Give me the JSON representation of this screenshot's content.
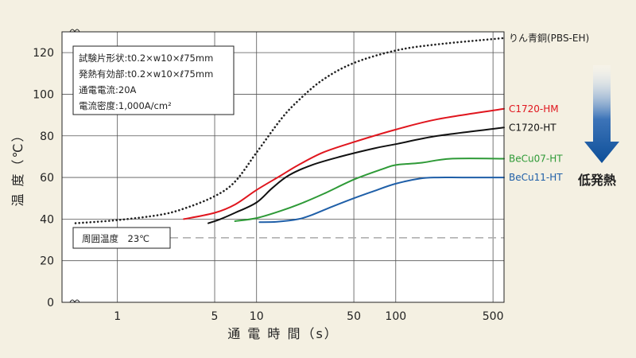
{
  "chart_data": {
    "type": "line",
    "xscale": "log",
    "xlabel": "通 電 時 間（s）",
    "ylabel": "温 度（℃）",
    "xlim": [
      0.4,
      600
    ],
    "ylim": [
      0,
      130
    ],
    "x_ticks": [
      1,
      5,
      10,
      50,
      100,
      500
    ],
    "x_tick_labels": [
      "1",
      "5",
      "10",
      "50",
      "100",
      "500"
    ],
    "y_ticks": [
      0,
      20,
      40,
      60,
      80,
      100,
      120
    ],
    "y_tick_labels": [
      "0",
      "20",
      "40",
      "60",
      "80",
      "100",
      "120"
    ],
    "ambient": {
      "label": "周囲温度　23℃",
      "value": 31
    },
    "conditions": [
      "試験片形状:t0.2×w10×ℓ75mm",
      "発熱有効部:t0.2×w10×ℓ75mm",
      "通電電流:20A",
      "電流密度:1,000A/cm²"
    ],
    "arrow_label": "低発熱",
    "series": [
      {
        "name": "りん青銅(PBS-EH)",
        "color": "#222222",
        "dash": "dotted",
        "x": [
          0.5,
          1,
          2,
          3,
          5,
          7,
          10,
          15,
          20,
          30,
          50,
          100,
          200,
          600
        ],
        "y": [
          38,
          39.5,
          42,
          45,
          51,
          58,
          72,
          88,
          97,
          107,
          115,
          121,
          124,
          127
        ]
      },
      {
        "name": "C1720-HM",
        "color": "#e0161e",
        "dash": "solid",
        "x": [
          3,
          5,
          7,
          10,
          15,
          20,
          30,
          50,
          100,
          200,
          600
        ],
        "y": [
          40,
          43,
          47,
          54,
          61,
          66,
          72,
          77,
          83,
          88,
          93
        ]
      },
      {
        "name": "C1720-HT",
        "color": "#111111",
        "dash": "solid",
        "x": [
          4.5,
          5.5,
          7,
          10,
          13,
          17,
          25,
          40,
          70,
          100,
          200,
          600
        ],
        "y": [
          38,
          40,
          43,
          48,
          55,
          61,
          66,
          70,
          74,
          76,
          80,
          84
        ]
      },
      {
        "name": "BeCu07-HT",
        "color": "#2e9a37",
        "dash": "solid",
        "x": [
          7,
          10,
          15,
          20,
          30,
          50,
          80,
          100,
          150,
          250,
          600
        ],
        "y": [
          39,
          40.5,
          44,
          47,
          52,
          59,
          64,
          66,
          67,
          69,
          69
        ]
      },
      {
        "name": "BeCu11-HT",
        "color": "#1f5fa8",
        "dash": "solid",
        "x": [
          10.5,
          14,
          20,
          25,
          35,
          50,
          70,
          100,
          150,
          200,
          300,
          600
        ],
        "y": [
          38.5,
          38.7,
          40,
          42,
          46,
          50,
          53.5,
          57,
          59.5,
          60,
          60,
          60
        ]
      }
    ]
  }
}
